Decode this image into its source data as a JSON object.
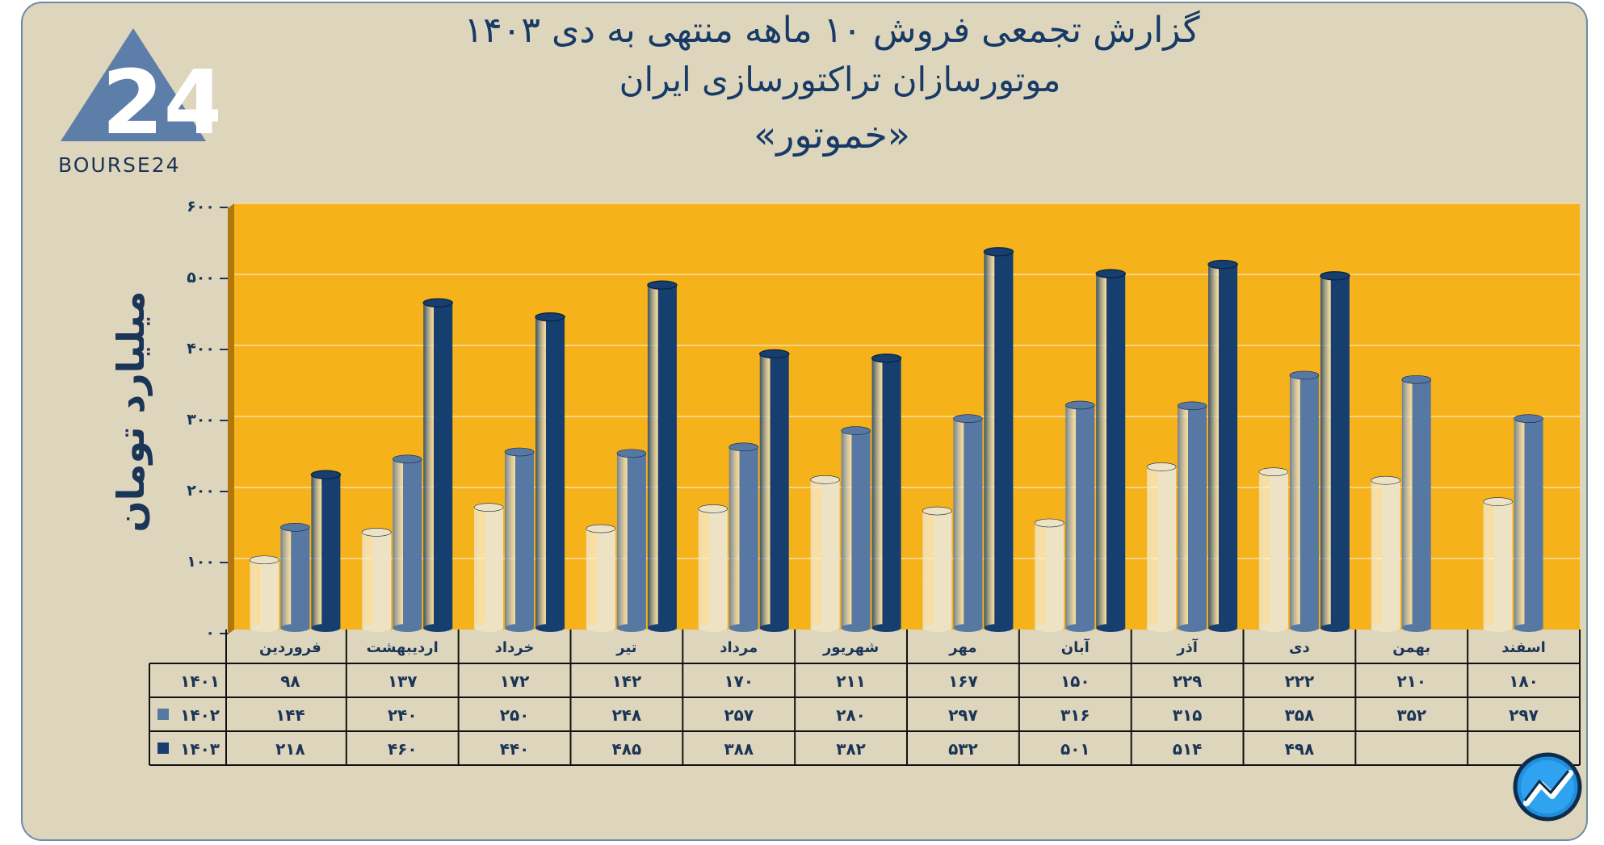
{
  "header": {
    "title_line1": "گزارش تجمعی فروش ۱۰ ماهه منتهی به دی ۱۴۰۳",
    "title_line2": "موتورسازان تراکتورسازی ایران",
    "title_line3": "«خموتور»"
  },
  "logo": {
    "text": "BOURSE24",
    "mark": "24"
  },
  "colors": {
    "background": "#ded5bd",
    "plot_area": "#f6b21a",
    "series_1401": "#ede3c4",
    "series_1402": "#5878a4",
    "series_1403": "#163f70",
    "text": "#1b3556"
  },
  "chart_data": {
    "type": "bar",
    "title": "گزارش تجمعی فروش ۱۰ ماهه منتهی به دی ۱۴۰۳",
    "ylabel": "میلیارد تومان",
    "ylim": [
      0,
      600
    ],
    "yticks": [
      0,
      100,
      200,
      300,
      400,
      500,
      600
    ],
    "ytick_labels": [
      "۰",
      "۱۰۰",
      "۲۰۰",
      "۳۰۰",
      "۴۰۰",
      "۵۰۰",
      "۶۰۰"
    ],
    "grid": true,
    "categories": [
      "فروردین",
      "اردیبهشت",
      "خرداد",
      "تیر",
      "مرداد",
      "شهریور",
      "مهر",
      "آبان",
      "آذر",
      "دی",
      "بهمن",
      "اسفند"
    ],
    "series": [
      {
        "name": "۱۴۰۱",
        "values": [
          98,
          137,
          172,
          142,
          170,
          211,
          167,
          150,
          229,
          222,
          210,
          180
        ],
        "labels": [
          "۹۸",
          "۱۳۷",
          "۱۷۲",
          "۱۴۲",
          "۱۷۰",
          "۲۱۱",
          "۱۶۷",
          "۱۵۰",
          "۲۲۹",
          "۲۲۲",
          "۲۱۰",
          "۱۸۰"
        ]
      },
      {
        "name": "۱۴۰۲",
        "values": [
          144,
          240,
          250,
          248,
          257,
          280,
          297,
          316,
          315,
          358,
          352,
          297
        ],
        "labels": [
          "۱۴۴",
          "۲۴۰",
          "۲۵۰",
          "۲۴۸",
          "۲۵۷",
          "۲۸۰",
          "۲۹۷",
          "۳۱۶",
          "۳۱۵",
          "۳۵۸",
          "۳۵۲",
          "۲۹۷"
        ]
      },
      {
        "name": "۱۴۰۳",
        "values": [
          218,
          460,
          440,
          485,
          388,
          382,
          532,
          501,
          514,
          498,
          null,
          null
        ],
        "labels": [
          "۲۱۸",
          "۴۶۰",
          "۴۴۰",
          "۴۸۵",
          "۳۸۸",
          "۳۸۲",
          "۵۳۲",
          "۵۰۱",
          "۵۱۴",
          "۴۹۸",
          "",
          ""
        ]
      }
    ]
  }
}
